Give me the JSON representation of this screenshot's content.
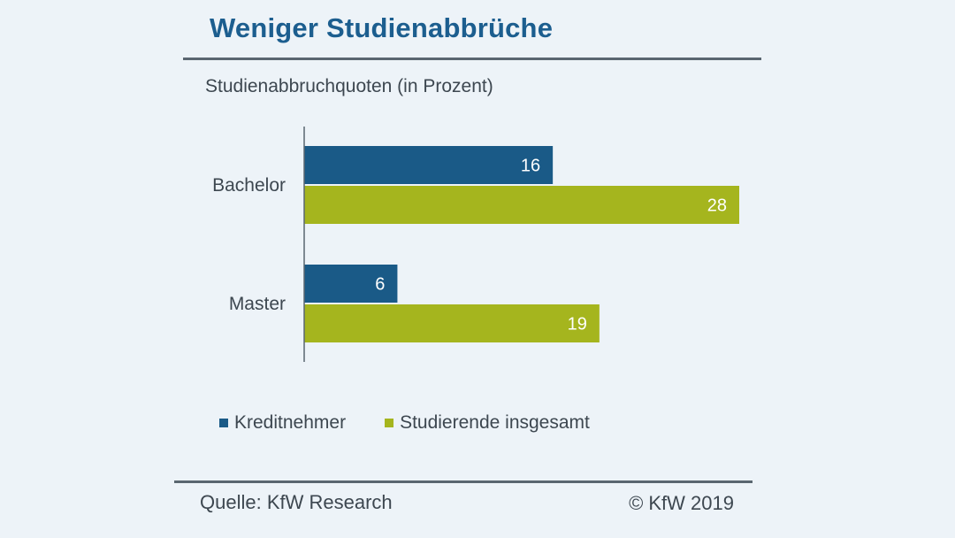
{
  "title": "Weniger  Studienabbrüche",
  "subtitle": "Studienabbruchquoten (in Prozent)",
  "source": "Quelle: KfW Research",
  "copyright": "© KfW 2019",
  "colors": {
    "accent": "#1c5e8f",
    "series1": "#1a5a87",
    "series2": "#a5b51e",
    "text": "#3d4750"
  },
  "chart_data": {
    "type": "bar",
    "orientation": "horizontal",
    "title": "Weniger  Studienabbrüche",
    "subtitle": "Studienabbruchquoten (in Prozent)",
    "categories": [
      "Bachelor",
      "Master"
    ],
    "series": [
      {
        "name": "Kreditnehmer",
        "values": [
          16,
          6
        ],
        "color": "#1a5a87"
      },
      {
        "name": "Studierende insgesamt",
        "values": [
          28,
          19
        ],
        "color": "#a5b51e"
      }
    ],
    "xlim": [
      0,
      28
    ],
    "xlabel": "",
    "ylabel": "",
    "grid": false,
    "legend_position": "bottom"
  }
}
